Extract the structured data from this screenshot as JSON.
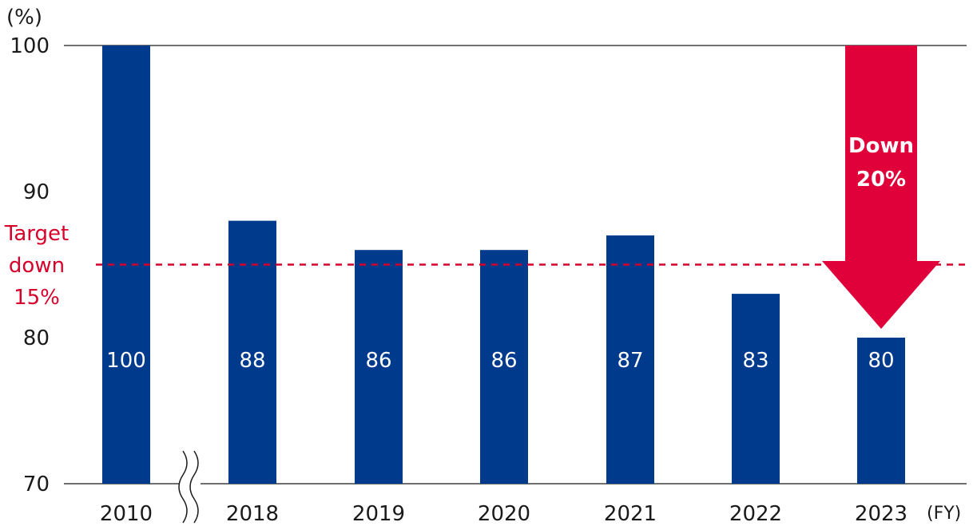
{
  "chart_data": {
    "type": "bar",
    "categories": [
      "2010",
      "2018",
      "2019",
      "2020",
      "2021",
      "2022",
      "2023"
    ],
    "values": [
      100,
      88,
      86,
      86,
      87,
      83,
      80
    ],
    "value_labels": [
      "100",
      "88",
      "86",
      "86",
      "87",
      "83",
      "80"
    ],
    "ylim": [
      70,
      100
    ],
    "yticks": [
      "70",
      "80",
      "90",
      "100"
    ],
    "ylabel": "(%)",
    "xlabel": "(FY)",
    "axis_break_after": "2010",
    "target": {
      "value": 85,
      "label_lines": [
        "Target",
        "down",
        "15%"
      ]
    },
    "annotation": {
      "lines": [
        "Down",
        "20%"
      ],
      "from": "2010",
      "to": "2023"
    },
    "grid": "top line and baseline only",
    "colors": {
      "bar": "#003a8c",
      "target": "#d6002a",
      "arrow": "#e0003a",
      "axis": "#1a1a1a"
    }
  }
}
